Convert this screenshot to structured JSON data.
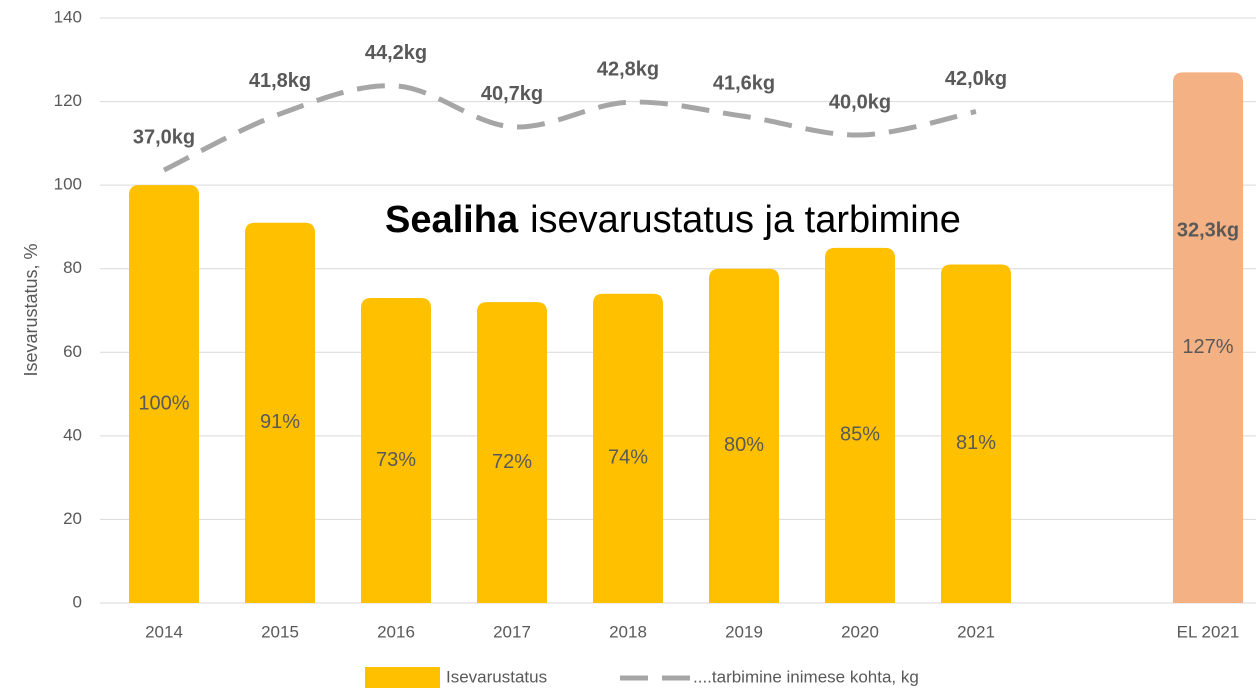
{
  "chart_data": {
    "type": "bar",
    "title_bold": "Sealiha",
    "title_rest": "isevarustatus ja tarbimine",
    "ylabel": "Isevarustatus, %",
    "categories": [
      "2014",
      "2015",
      "2016",
      "2017",
      "2018",
      "2019",
      "2020",
      "2021",
      null,
      "EL 2021"
    ],
    "ylim": [
      0,
      140
    ],
    "yticks": [
      0,
      20,
      40,
      60,
      80,
      100,
      120,
      140
    ],
    "y2lim": [
      0,
      50
    ],
    "grid": true,
    "series": [
      {
        "name": "Isevarustatus",
        "type": "bar",
        "colors": [
          "#ffc000",
          "#ffc000",
          "#ffc000",
          "#ffc000",
          "#ffc000",
          "#ffc000",
          "#ffc000",
          "#ffc000",
          null,
          "#f4b183"
        ],
        "color": "#ffc000",
        "values": [
          100,
          91,
          73,
          72,
          74,
          80,
          85,
          81,
          null,
          127
        ],
        "value_labels": [
          "100%",
          "91%",
          "73%",
          "72%",
          "74%",
          "80%",
          "85%",
          "81%",
          null,
          "127%"
        ]
      },
      {
        "name": "....tarbimine inimese kohta, kg",
        "type": "line",
        "axis": "y2",
        "color": "#a6a6a6",
        "values": [
          37.0,
          41.8,
          44.2,
          40.7,
          42.8,
          41.6,
          40.0,
          42.0,
          null,
          null
        ],
        "value_labels": [
          "37,0kg",
          "41,8kg",
          "44,2kg",
          "40,7kg",
          "42,8kg",
          "41,6kg",
          "40,0kg",
          "42,0kg",
          null,
          null
        ]
      }
    ],
    "el_consumption": {
      "value": 32.3,
      "label": "32,3kg"
    }
  }
}
